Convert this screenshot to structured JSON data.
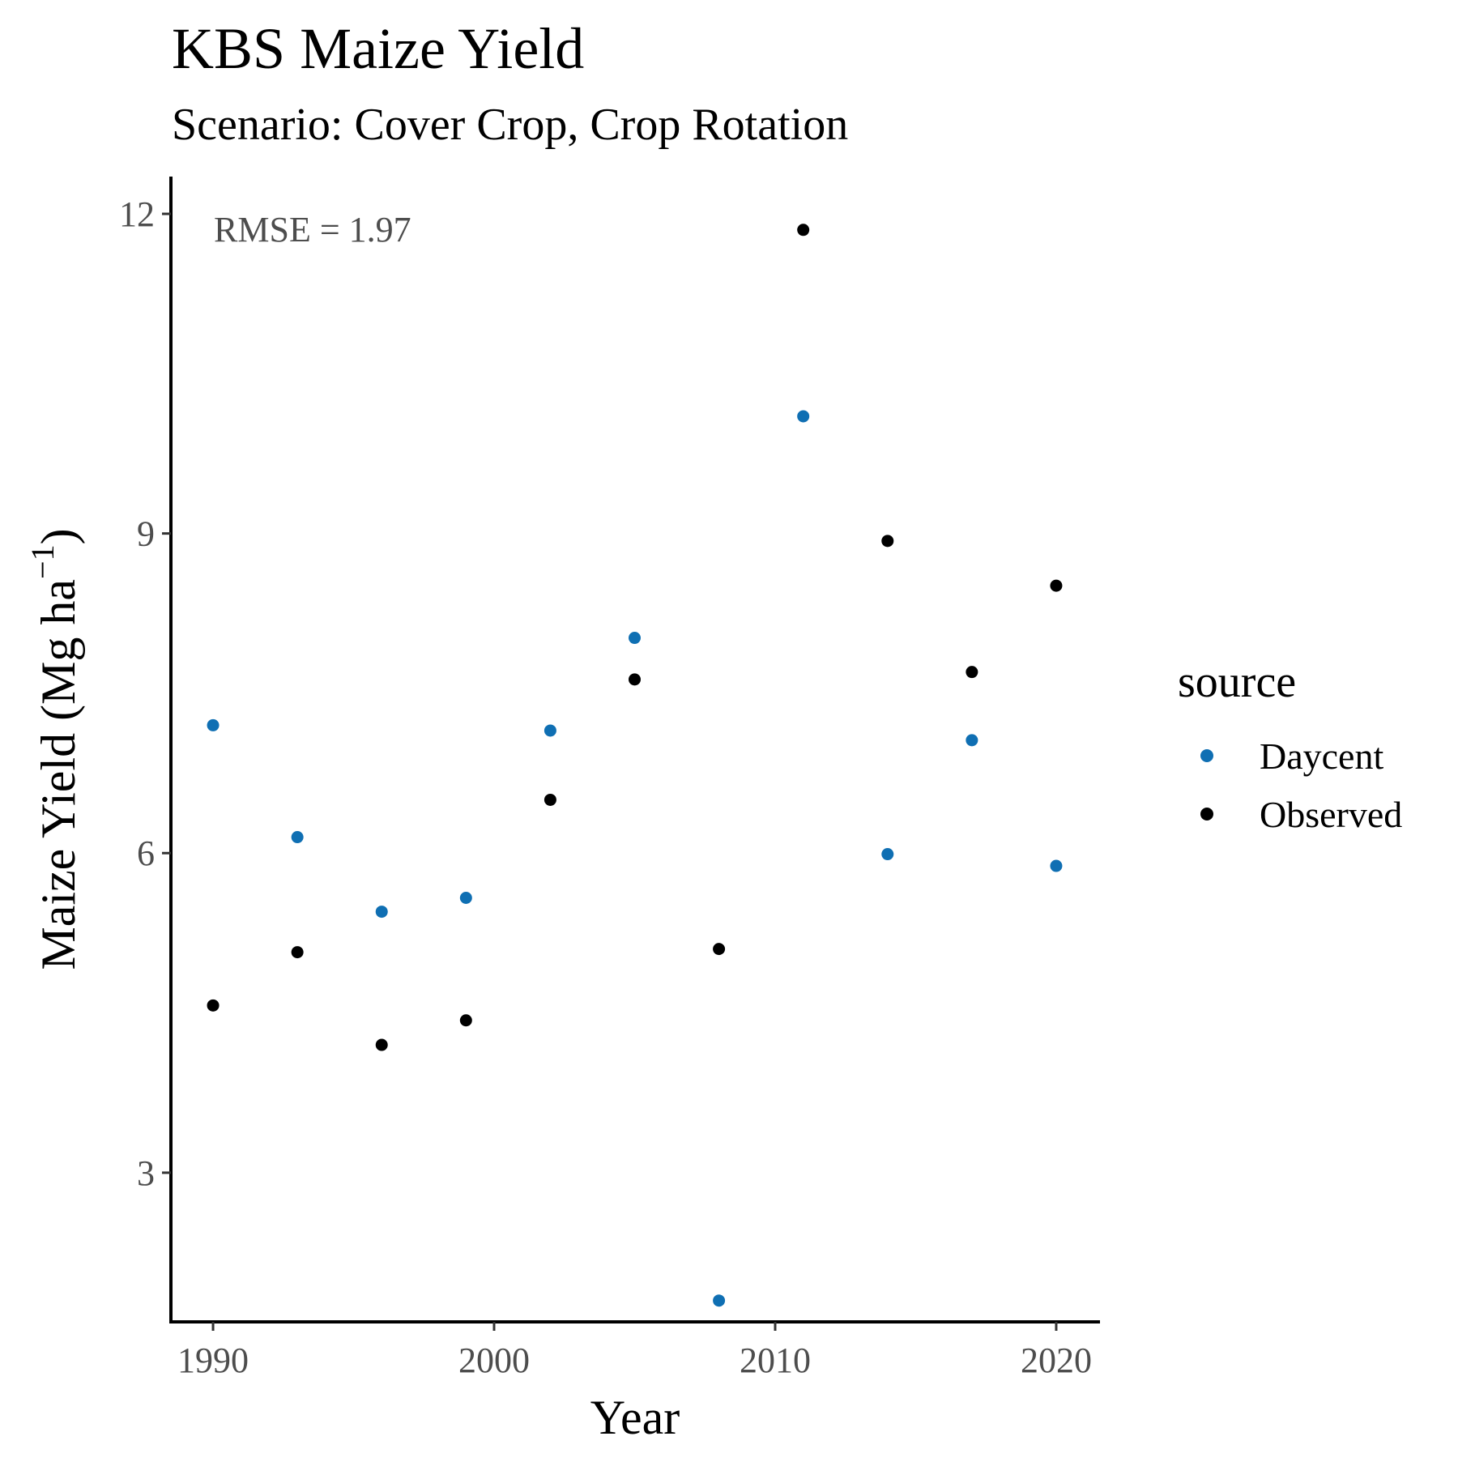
{
  "chart_data": {
    "type": "scatter",
    "title": "KBS Maize Yield",
    "subtitle": "Scenario: Cover Crop, Crop Rotation",
    "xlabel": "Year",
    "ylabel_main": "Maize Yield (Mg ha",
    "ylabel_sup": "−1",
    "ylabel_close": ")",
    "xlim": [
      1988.5,
      2021.5
    ],
    "ylim": [
      1.6,
      12.35
    ],
    "x_ticks": [
      1990,
      2000,
      2010,
      2020
    ],
    "y_ticks": [
      3,
      6,
      9,
      12
    ],
    "grid": false,
    "annotation": "RMSE = 1.97",
    "legend": {
      "title": "source",
      "position": "right"
    },
    "series": [
      {
        "name": "Daycent",
        "color": "#0f6fb3",
        "points": [
          {
            "x": 1990,
            "y": 7.2
          },
          {
            "x": 1993,
            "y": 6.15
          },
          {
            "x": 1996,
            "y": 5.45
          },
          {
            "x": 1999,
            "y": 5.58
          },
          {
            "x": 2002,
            "y": 7.15
          },
          {
            "x": 2005,
            "y": 8.02
          },
          {
            "x": 2008,
            "y": 1.8
          },
          {
            "x": 2011,
            "y": 10.1
          },
          {
            "x": 2014,
            "y": 5.99
          },
          {
            "x": 2017,
            "y": 7.06
          },
          {
            "x": 2020,
            "y": 5.88
          }
        ]
      },
      {
        "name": "Observed",
        "color": "#000000",
        "points": [
          {
            "x": 1990,
            "y": 4.57
          },
          {
            "x": 1993,
            "y": 5.07
          },
          {
            "x": 1996,
            "y": 4.2
          },
          {
            "x": 1999,
            "y": 4.43
          },
          {
            "x": 2002,
            "y": 6.5
          },
          {
            "x": 2005,
            "y": 7.63
          },
          {
            "x": 2008,
            "y": 5.1
          },
          {
            "x": 2011,
            "y": 11.85
          },
          {
            "x": 2014,
            "y": 8.93
          },
          {
            "x": 2017,
            "y": 7.7
          },
          {
            "x": 2020,
            "y": 8.51
          }
        ]
      }
    ]
  }
}
